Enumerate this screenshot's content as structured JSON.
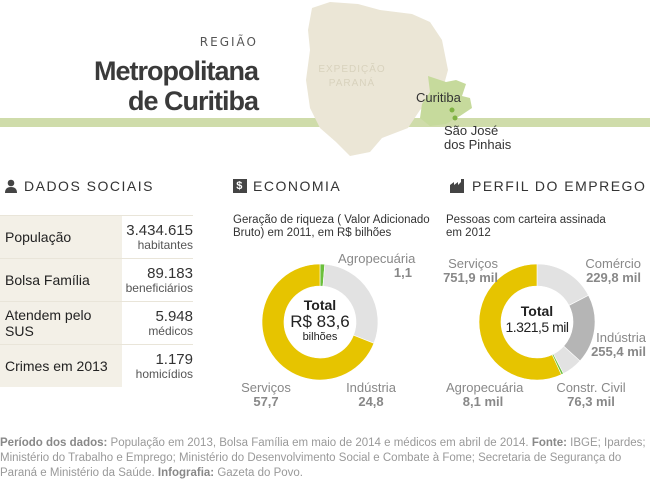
{
  "header": {
    "region_label": "REGIÃO",
    "title_line1": "Metropolitana",
    "title_line2": "de Curitiba",
    "map": {
      "watermark_line1": "EXPEDIÇÃO",
      "watermark_line2": "PARANÁ",
      "city1": "Curitiba",
      "city2_line1": "São José",
      "city2_line2": "dos Pinhais"
    }
  },
  "colors": {
    "state": "#ebe6d6",
    "region": "#c6da9c",
    "band": "#cfdcaa",
    "yellow": "#e6c400",
    "light_gray": "#e2e2e2",
    "dark_gray": "#b5b5b5",
    "green": "#6bbf3b"
  },
  "social": {
    "title": "DADOS SOCIAIS",
    "icon": "person-icon",
    "rows": [
      {
        "label": "População",
        "value": "3.434.615",
        "unit": "habitantes"
      },
      {
        "label": "Bolsa Família",
        "value": "89.183",
        "unit": "beneficiários"
      },
      {
        "label": "Atendem pelo SUS",
        "value": "5.948",
        "unit": "médicos"
      },
      {
        "label": "Crimes em 2013",
        "value": "1.179",
        "unit": "homicídios"
      }
    ]
  },
  "economia": {
    "title": "ECONOMIA",
    "icon": "dollar-icon",
    "subtitle_line1": "Geração de riqueza ( Valor Adicionado",
    "subtitle_line2": "Bruto) em 2011, em R$ bilhões",
    "total_label": "Total",
    "total_value": "R$ 83,6",
    "total_unit": "bilhões"
  },
  "emprego": {
    "title": "PERFIL DO EMPREGO",
    "icon": "factory-icon",
    "subtitle_line1": "Pessoas com carteira assinada",
    "subtitle_line2": "em 2012",
    "total_label": "Total",
    "total_value": "1.321,5 mil"
  },
  "chart_data": [
    {
      "type": "pie",
      "donut": true,
      "title": "Geração de riqueza ( Valor Adicionado Bruto) em 2011, em R$ bilhões",
      "categories": [
        "Agropecuária",
        "Indústria",
        "Serviços"
      ],
      "values": [
        1.1,
        24.8,
        57.7
      ],
      "labels": [
        "1,1",
        "24,8",
        "57,7"
      ],
      "colors": [
        "#6bbf3b",
        "#e2e2e2",
        "#e6c400"
      ]
    },
    {
      "type": "pie",
      "donut": true,
      "title": "Pessoas com carteira assinada em 2012",
      "categories": [
        "Comércio",
        "Indústria",
        "Constr. Civil",
        "Agropecuária",
        "Serviços"
      ],
      "values": [
        229.8,
        255.4,
        76.3,
        8.1,
        751.9
      ],
      "labels": [
        "229,8 mil",
        "255,4 mil",
        "76,3 mil",
        "8,1 mil",
        "751,9 mil"
      ],
      "colors": [
        "#e2e2e2",
        "#b5b5b5",
        "#e2e2e2",
        "#6bbf3b",
        "#e6c400"
      ]
    }
  ],
  "footer": {
    "k1": "Período dos dados:",
    "t1": " População em 2013, Bolsa Família em maio de 2014 e médicos em abril de 2014. ",
    "k2": "Fonte:",
    "t2": " IBGE; Ipardes; Ministério do Trabalho e Emprego; Ministério do Desenvolvimento Social e Combate à Fome; Secretaria de Segurança do Paraná e Ministério da Saúde. ",
    "k3": "Infografia:",
    "t3": " Gazeta do Povo."
  }
}
